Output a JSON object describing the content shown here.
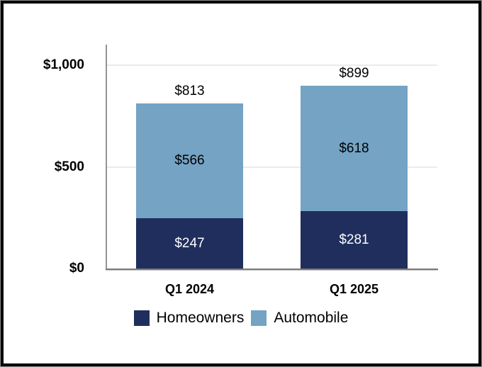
{
  "chart_data": {
    "type": "bar",
    "subtype": "stacked",
    "title": "",
    "categories": [
      "Q1 2024",
      "Q1 2025"
    ],
    "series": [
      {
        "name": "Homeowners",
        "color": "#1f2e5c",
        "label_color": "#ffffff",
        "values": [
          247,
          281
        ],
        "labels": [
          "$247",
          "$281"
        ]
      },
      {
        "name": "Automobile",
        "color": "#74a3c4",
        "label_color": "#000000",
        "values": [
          566,
          618
        ],
        "labels": [
          "$566",
          "$618"
        ]
      }
    ],
    "totals": {
      "values": [
        813,
        899
      ],
      "labels": [
        "$813",
        "$899"
      ]
    },
    "y_axis": {
      "max": 1000,
      "gridlines": true,
      "ticks": [
        {
          "value": 0,
          "label": "$0"
        },
        {
          "value": 500,
          "label": "$500"
        },
        {
          "value": 1000,
          "label": "$1,000"
        }
      ]
    },
    "legend": {
      "position": "bottom",
      "entries": [
        "Homeowners",
        "Automobile"
      ]
    }
  }
}
